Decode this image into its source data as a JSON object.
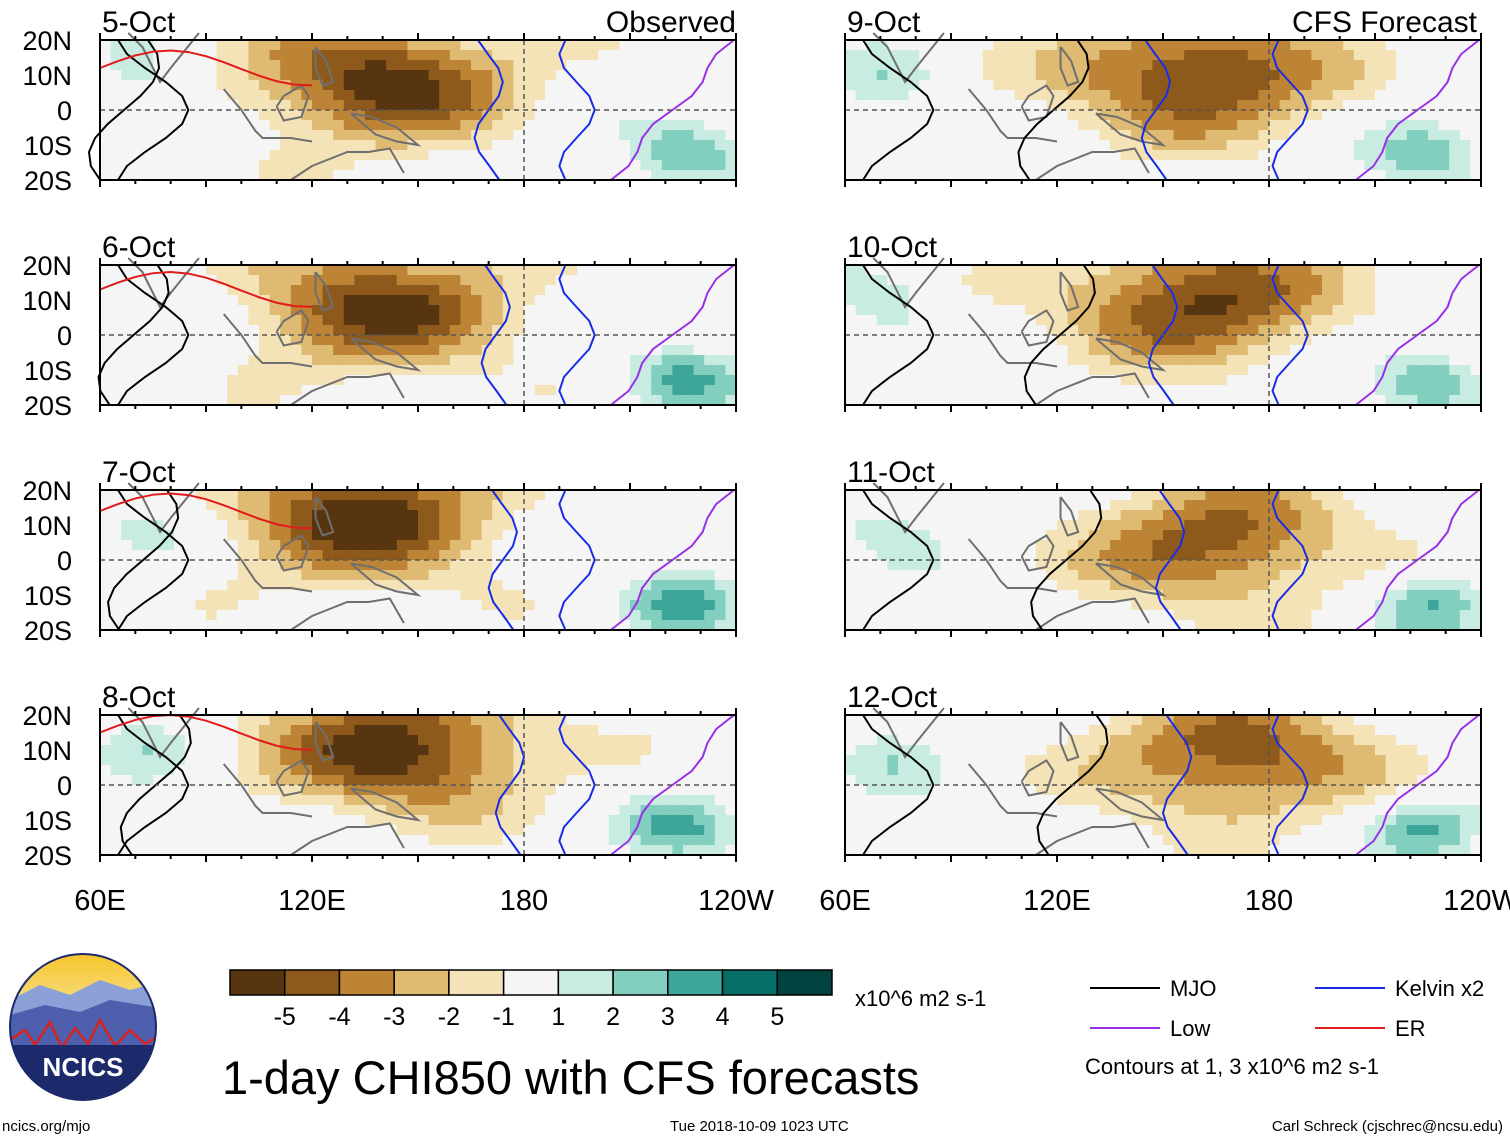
{
  "chart_data": {
    "type": "heatmap",
    "title": "1-day CHI850 with CFS forecasts",
    "variable": "CHI850",
    "units": "x10^6 m2 s-1",
    "latitude_labels": [
      "20N",
      "10N",
      "0",
      "10S",
      "20S"
    ],
    "longitude_labels": [
      "60E",
      "120E",
      "180",
      "120W"
    ],
    "lon_range": [
      60,
      240
    ],
    "lat_range": [
      -20,
      20
    ],
    "observed_label": "Observed",
    "forecast_label": "CFS Forecast",
    "panels": [
      {
        "date": "5-Oct",
        "source": "observed",
        "min_center": [
          140,
          8
        ],
        "anomaly": -5.5
      },
      {
        "date": "6-Oct",
        "source": "observed",
        "min_center": [
          140,
          8
        ],
        "anomaly": -5.2
      },
      {
        "date": "7-Oct",
        "source": "observed",
        "min_center": [
          135,
          12
        ],
        "anomaly": -5.6
      },
      {
        "date": "8-Oct",
        "source": "observed",
        "min_center": [
          145,
          10
        ],
        "anomaly": -5.6
      },
      {
        "date": "9-Oct",
        "source": "forecast",
        "min_center": [
          160,
          10
        ],
        "anomaly": -5.4
      },
      {
        "date": "10-Oct",
        "source": "forecast",
        "min_center": [
          160,
          10
        ],
        "anomaly": -5.3
      },
      {
        "date": "11-Oct",
        "source": "forecast",
        "min_center": [
          165,
          5
        ],
        "anomaly": -4.6
      },
      {
        "date": "12-Oct",
        "source": "forecast",
        "min_center": [
          170,
          8
        ],
        "anomaly": -4.8
      }
    ],
    "colorbar": {
      "ticks": [
        "-5",
        "-4",
        "-3",
        "-2",
        "-1",
        "1",
        "2",
        "3",
        "4",
        "5"
      ],
      "colors": [
        "#573510",
        "#8e5a1c",
        "#be8436",
        "#dfba72",
        "#f5e3b8",
        "#f5f5f5",
        "#c8ebe2",
        "#82cfc0",
        "#3ea59a",
        "#086e68",
        "#03433f"
      ]
    },
    "legend": [
      {
        "label": "MJO",
        "color": "#000000"
      },
      {
        "label": "Kelvin x2",
        "color": "#1a2de6"
      },
      {
        "label": "Low",
        "color": "#9a30e6"
      },
      {
        "label": "ER",
        "color": "#e11b1b"
      }
    ],
    "contour_note": "Contours at 1, 3 x10^6 m2 s-1"
  },
  "branding": {
    "logo_text": "NCICS"
  },
  "footer": {
    "url": "ncics.org/mjo",
    "timestamp": "Tue 2018-10-09 1023 UTC",
    "credit": "Carl Schreck (cjschrec@ncsu.edu)"
  }
}
